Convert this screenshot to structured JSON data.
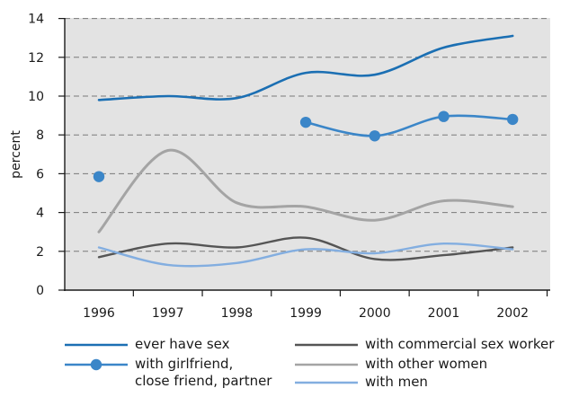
{
  "chart_data": {
    "type": "line",
    "title": "",
    "xlabel": "",
    "ylabel": "percent",
    "ylim": [
      0,
      14
    ],
    "yticks": [
      0,
      2,
      4,
      6,
      8,
      10,
      12,
      14
    ],
    "x": [
      "1996",
      "1997",
      "1998",
      "1999",
      "2000",
      "2001",
      "2002"
    ],
    "grid": "horizontal dashed",
    "legend_position": "bottom",
    "series": [
      {
        "name": "ever have sex",
        "color": "#1b6fb3",
        "x": [
          1996,
          1997,
          1998,
          1999,
          2000,
          2001,
          2002
        ],
        "values": [
          9.8,
          10.0,
          9.9,
          11.2,
          11.1,
          12.5,
          13.1
        ]
      },
      {
        "name": "with girlfriend, close friend, partner",
        "color": "#3b86c8",
        "markers": true,
        "x": [
          1996,
          1999,
          2000,
          2001,
          2002
        ],
        "values": [
          5.85,
          8.65,
          7.95,
          8.95,
          8.8
        ]
      },
      {
        "name": "with commercial sex worker",
        "color": "#555555",
        "x": [
          1996,
          1997,
          1998,
          1999,
          2000,
          2001,
          2002
        ],
        "values": [
          1.7,
          2.4,
          2.2,
          2.7,
          1.6,
          1.8,
          2.2
        ]
      },
      {
        "name": "with other women",
        "color": "#a4a4a4",
        "x": [
          1996,
          1997,
          1998,
          1999,
          2000,
          2001,
          2002
        ],
        "values": [
          3.0,
          7.2,
          4.5,
          4.3,
          3.6,
          4.6,
          4.3
        ]
      },
      {
        "name": "with men",
        "color": "#83aee0",
        "x": [
          1996,
          1997,
          1998,
          1999,
          2000,
          2001,
          2002
        ],
        "values": [
          2.2,
          1.3,
          1.4,
          2.1,
          1.9,
          2.4,
          2.1
        ]
      }
    ]
  },
  "legend": {
    "col1": [
      {
        "lines": [
          "ever have sex"
        ]
      },
      {
        "lines": [
          "with girlfriend,",
          "close friend, partner"
        ]
      }
    ],
    "col2": [
      {
        "lines": [
          "with commercial sex worker"
        ]
      },
      {
        "lines": [
          "with other women"
        ]
      },
      {
        "lines": [
          "with men"
        ]
      }
    ]
  }
}
